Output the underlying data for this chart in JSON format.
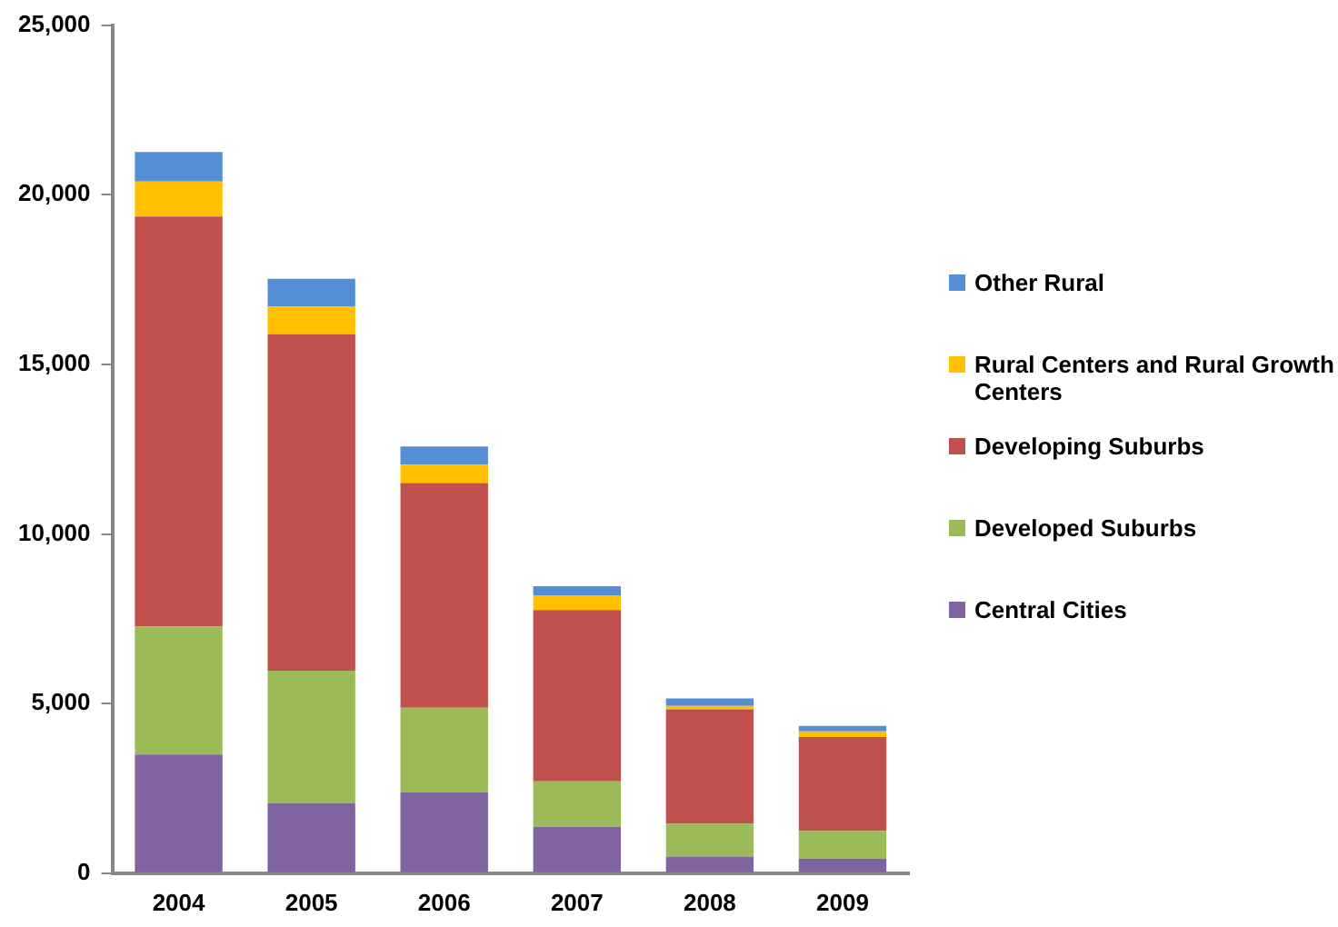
{
  "chart_data": {
    "type": "bar",
    "stacked": true,
    "categories": [
      "2004",
      "2005",
      "2006",
      "2007",
      "2008",
      "2009"
    ],
    "series": [
      {
        "name": "Central Cities",
        "color": "#8064a2",
        "values": [
          3500,
          2060,
          2390,
          1360,
          490,
          430
        ]
      },
      {
        "name": "Developed Suburbs",
        "color": "#9bbb59",
        "values": [
          3770,
          3910,
          2490,
          1350,
          970,
          820
        ]
      },
      {
        "name": "Developing Suburbs",
        "color": "#c0504d",
        "values": [
          12090,
          9920,
          6620,
          5050,
          3370,
          2760
        ]
      },
      {
        "name": "Rural Centers and Rural Growth Centers",
        "color": "#ffc000",
        "values": [
          1030,
          810,
          540,
          430,
          100,
          170
        ]
      },
      {
        "name": "Other Rural",
        "color": "#558ed5",
        "values": [
          870,
          820,
          540,
          270,
          220,
          160
        ]
      }
    ],
    "ylim": [
      0,
      25000
    ],
    "yticks": [
      {
        "value": 0,
        "label": "0"
      },
      {
        "value": 5000,
        "label": "5,000"
      },
      {
        "value": 10000,
        "label": "10,000"
      },
      {
        "value": 15000,
        "label": "15,000"
      },
      {
        "value": 20000,
        "label": "20,000"
      },
      {
        "value": 25000,
        "label": "25,000"
      }
    ],
    "grid": false,
    "legend": "right"
  }
}
